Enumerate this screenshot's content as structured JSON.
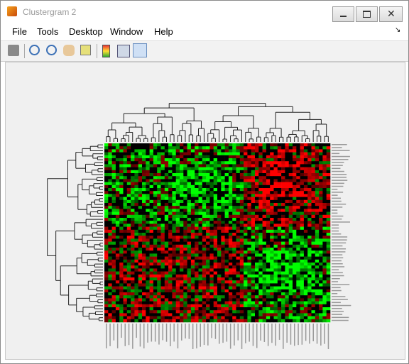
{
  "window": {
    "title": "Clustergram 2"
  },
  "menu": [
    "File",
    "Tools",
    "Desktop",
    "Window",
    "Help"
  ]
}
